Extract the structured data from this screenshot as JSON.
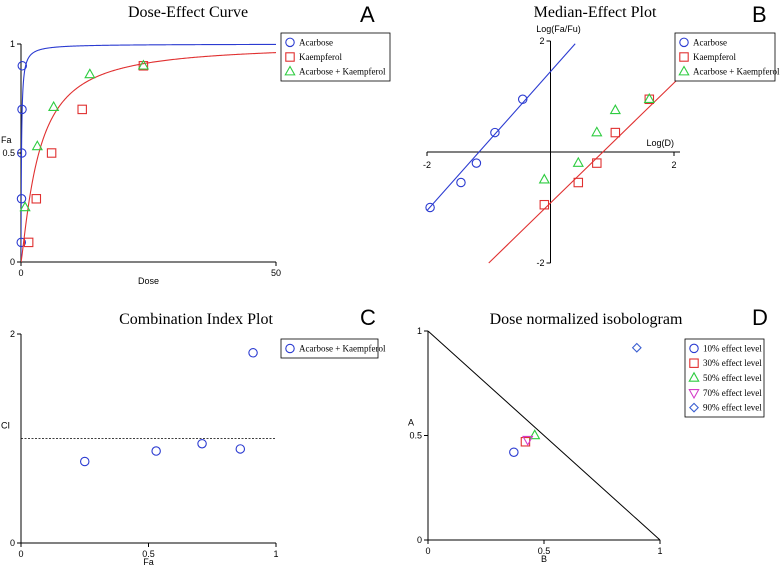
{
  "chart_data": [
    {
      "panel": "A",
      "type": "scatter",
      "title": "Dose-Effect Curve",
      "xlabel": "Dose",
      "ylabel": "Fa",
      "xlim": [
        0,
        50
      ],
      "ylim": [
        0,
        1
      ],
      "xticks": [
        {
          "v": 0,
          "t": "0"
        },
        {
          "v": 50,
          "t": "50"
        }
      ],
      "yticks": [
        {
          "v": 0,
          "t": "0"
        },
        {
          "v": 0.5,
          "t": "0.5"
        },
        {
          "v": 1,
          "t": "1"
        }
      ],
      "legend": [
        "Acarbose",
        "Kaempferol",
        "Acarbose + Kaempferol"
      ],
      "series": [
        {
          "name": "Acarbose",
          "marker": "circle",
          "color": "#2b3bd1",
          "points": [
            [
              0.05,
              0.09
            ],
            [
              0.1,
              0.29
            ],
            [
              0.15,
              0.5
            ],
            [
              0.2,
              0.7
            ],
            [
              0.25,
              0.9
            ]
          ],
          "curve": {
            "dm": 0.1,
            "m": 1.0
          }
        },
        {
          "name": "Kaempferol",
          "marker": "square",
          "color": "#e03030",
          "points": [
            [
              1.5,
              0.09
            ],
            [
              3,
              0.29
            ],
            [
              6,
              0.5
            ],
            [
              12,
              0.7
            ],
            [
              24,
              0.9
            ]
          ],
          "curve": {
            "dm": 3.5,
            "m": 1.2
          }
        },
        {
          "name": "Acarbose + Kaempferol",
          "marker": "triangle",
          "color": "#2ecc40",
          "points": [
            [
              0.8,
              0.25
            ],
            [
              3.2,
              0.53
            ],
            [
              6.4,
              0.71
            ],
            [
              13.5,
              0.86
            ],
            [
              24,
              0.9
            ]
          ]
        }
      ]
    },
    {
      "panel": "B",
      "type": "scatter",
      "title": "Median-Effect Plot",
      "xlabel": "Log(D)",
      "ylabel": "Log(Fa/Fu)",
      "xlim": [
        -2,
        2
      ],
      "ylim": [
        -2,
        2
      ],
      "xticks": [
        {
          "v": -2,
          "t": "-2"
        },
        {
          "v": 2,
          "t": "2"
        }
      ],
      "yticks": [
        {
          "v": -2,
          "t": "-2"
        },
        {
          "v": 2,
          "t": "2"
        }
      ],
      "legend": [
        "Acarbose",
        "Kaempferol",
        "Acarbose + Kaempferol"
      ],
      "series": [
        {
          "name": "Acarbose",
          "marker": "circle",
          "color": "#2b3bd1",
          "points": [
            [
              -1.95,
              -1.0
            ],
            [
              -1.45,
              -0.55
            ],
            [
              -1.2,
              -0.2
            ],
            [
              -0.9,
              0.35
            ],
            [
              -0.45,
              0.95
            ]
          ],
          "line": [
            [
              -2.1,
              -1.18
            ],
            [
              0.4,
              1.95
            ]
          ]
        },
        {
          "name": "Kaempferol",
          "marker": "square",
          "color": "#e03030",
          "points": [
            [
              -0.1,
              -0.95
            ],
            [
              0.45,
              -0.55
            ],
            [
              0.75,
              -0.2
            ],
            [
              1.05,
              0.35
            ],
            [
              1.6,
              0.95
            ]
          ],
          "line": [
            [
              -1.0,
              -2.0
            ],
            [
              2.05,
              1.3
            ]
          ]
        },
        {
          "name": "Acarbose + Kaempferol",
          "marker": "triangle",
          "color": "#2ecc40",
          "points": [
            [
              -0.1,
              -0.5
            ],
            [
              0.45,
              -0.2
            ],
            [
              0.75,
              0.35
            ],
            [
              1.05,
              0.75
            ],
            [
              1.6,
              0.95
            ]
          ]
        }
      ]
    },
    {
      "panel": "C",
      "type": "scatter",
      "title": "Combination Index Plot",
      "xlabel": "Fa",
      "ylabel": "CI",
      "xlim": [
        0,
        1
      ],
      "ylim": [
        0,
        2
      ],
      "xticks": [
        {
          "v": 0,
          "t": "0"
        },
        {
          "v": 0.5,
          "t": "0.5"
        },
        {
          "v": 1,
          "t": "1"
        }
      ],
      "yticks": [
        {
          "v": 0,
          "t": "0"
        },
        {
          "v": 2,
          "t": "2"
        }
      ],
      "reference_line": 1,
      "legend": [
        "Acarbose + Kaempferol"
      ],
      "series": [
        {
          "name": "Acarbose + Kaempferol",
          "marker": "circle",
          "color": "#2b3bd1",
          "points": [
            [
              0.25,
              0.78
            ],
            [
              0.53,
              0.88
            ],
            [
              0.71,
              0.95
            ],
            [
              0.86,
              0.9
            ],
            [
              0.91,
              1.82
            ]
          ]
        }
      ]
    },
    {
      "panel": "D",
      "type": "scatter",
      "title": "Dose normalized isobologram",
      "xlabel": "B",
      "ylabel": "A",
      "xlim": [
        0,
        1
      ],
      "ylim": [
        0,
        1
      ],
      "xticks": [
        {
          "v": 0,
          "t": "0"
        },
        {
          "v": 0.5,
          "t": "0.5"
        },
        {
          "v": 1,
          "t": "1"
        }
      ],
      "yticks": [
        {
          "v": 0,
          "t": "0"
        },
        {
          "v": 0.5,
          "t": "0.5"
        },
        {
          "v": 1,
          "t": "1"
        }
      ],
      "diagonal": [
        [
          0,
          1
        ],
        [
          1,
          0
        ]
      ],
      "legend": [
        "10% effect level",
        "30% effect level",
        "50% effect level",
        "70% effect level",
        "90% effect level"
      ],
      "series": [
        {
          "name": "10% effect level",
          "marker": "circle",
          "color": "#2b3bd1",
          "points": [
            [
              0.37,
              0.42
            ]
          ]
        },
        {
          "name": "30% effect level",
          "marker": "square",
          "color": "#e03030",
          "points": [
            [
              0.42,
              0.47
            ]
          ]
        },
        {
          "name": "50% effect level",
          "marker": "triangle",
          "color": "#2ecc40",
          "points": [
            [
              0.46,
              0.5
            ]
          ]
        },
        {
          "name": "70% effect level",
          "marker": "triangle-down",
          "color": "#d43cc8",
          "points": [
            [
              0.43,
              0.48
            ]
          ]
        },
        {
          "name": "90% effect level",
          "marker": "diamond",
          "color": "#3b5fd1",
          "points": [
            [
              0.9,
              0.92
            ]
          ]
        }
      ]
    }
  ],
  "panel_letters": [
    "A",
    "B",
    "C",
    "D"
  ]
}
